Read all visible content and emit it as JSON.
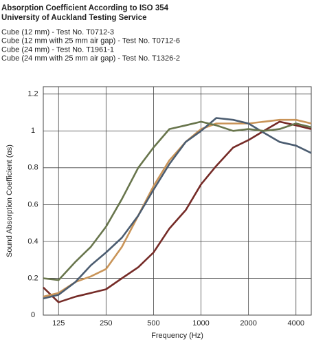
{
  "chart_data": {
    "type": "line",
    "title": "Absorption Coefficient According to ISO 354",
    "subtitle": "University of Auckland Testing Service",
    "x_label": "Frequency (Hz)",
    "y_label": "Sound Absorption Coefficient (αs)",
    "x": [
      100,
      125,
      160,
      200,
      250,
      315,
      400,
      500,
      630,
      800,
      1000,
      1250,
      1600,
      2000,
      2500,
      3150,
      4000,
      5000
    ],
    "log_x": true,
    "xlim": [
      100,
      5000
    ],
    "xticks": [
      125,
      250,
      500,
      1000,
      2000,
      4000
    ],
    "ylim": [
      0,
      1.24
    ],
    "yticks": [
      0,
      0.2,
      0.4,
      0.6,
      0.8,
      1,
      1.2
    ],
    "grid": true,
    "legend": "top",
    "series": [
      {
        "name": "Cube (12 mm) - Test No. T0712-3",
        "color": "#752b27",
        "values": [
          0.15,
          0.07,
          0.1,
          0.12,
          0.14,
          0.2,
          0.26,
          0.34,
          0.47,
          0.57,
          0.71,
          0.81,
          0.91,
          0.95,
          1.0,
          1.05,
          1.03,
          1.01
        ]
      },
      {
        "name": "Cube (12 mm with 25 mm air gap) - Test No. T0712-6",
        "color": "#c99458",
        "values": [
          0.1,
          0.12,
          0.18,
          0.21,
          0.25,
          0.37,
          0.54,
          0.7,
          0.84,
          0.94,
          1.01,
          1.04,
          1.04,
          1.04,
          1.05,
          1.06,
          1.06,
          1.04
        ]
      },
      {
        "name": "Cube (24 mm) - Test No. T1961-1",
        "color": "#4b5c70",
        "values": [
          0.09,
          0.11,
          0.18,
          0.27,
          0.34,
          0.42,
          0.54,
          0.68,
          0.82,
          0.94,
          1.0,
          1.07,
          1.06,
          1.04,
          0.99,
          0.94,
          0.92,
          0.88
        ]
      },
      {
        "name": "Cube (24 mm with 25 mm air gap) - Test No. T1326-2",
        "color": "#68754c",
        "values": [
          0.2,
          0.19,
          0.29,
          0.37,
          0.48,
          0.63,
          0.8,
          0.91,
          1.01,
          1.03,
          1.05,
          1.03,
          1.0,
          1.01,
          1.0,
          1.01,
          1.04,
          1.02
        ]
      }
    ]
  }
}
